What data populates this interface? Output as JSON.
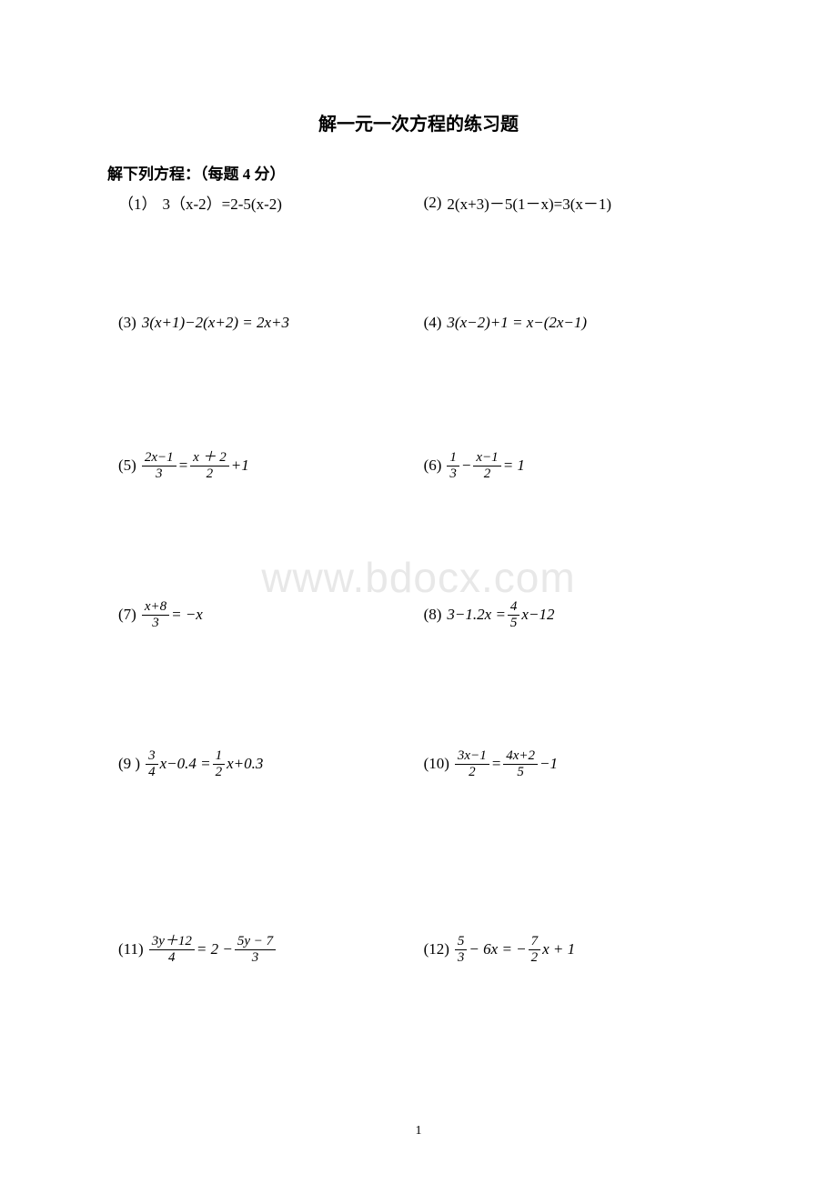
{
  "title": "解一元一次方程的练习题",
  "subtitle": "解下列方程：（每题 4 分）",
  "watermark": "www.bdocx.com",
  "page_number": "1",
  "colors": {
    "background": "#ffffff",
    "text": "#000000",
    "watermark": "#e8e8e8"
  },
  "typography": {
    "title_fontsize": 20,
    "subtitle_fontsize": 17,
    "body_fontsize": 17,
    "fraction_fontsize": 15,
    "watermark_fontsize": 46
  },
  "problems": {
    "p1": {
      "num": "（1）",
      "expr": "3（x-2）=2-5(x-2)"
    },
    "p2": {
      "num": "(2)",
      "expr": "2(x+3)－5(1－x)=3(x－1)"
    },
    "p3": {
      "num": "(3)",
      "expr": "3(x+1)−2(x+2) = 2x+3"
    },
    "p4": {
      "num": "(4)",
      "expr": "3(x−2)+1 = x−(2x−1)"
    },
    "p5": {
      "num": "(5)",
      "frac1_num": "2x−1",
      "frac1_den": "3",
      "op1": "=",
      "frac2_num": "x ＋ 2",
      "frac2_den": "2",
      "tail": "+1"
    },
    "p6": {
      "num": "(6)",
      "frac1_num": "1",
      "frac1_den": "3",
      "op1": "−",
      "frac2_num": "x−1",
      "frac2_den": "2",
      "tail": " = 1"
    },
    "p7": {
      "num": "(7)",
      "frac1_num": "x+8",
      "frac1_den": "3",
      "tail": " = −x"
    },
    "p8": {
      "num": "(8)",
      "pre": "3−1.2x = ",
      "frac1_num": "4",
      "frac1_den": "5",
      "tail": "x−12"
    },
    "p9": {
      "num": "(9 )",
      "frac1_num": "3",
      "frac1_den": "4",
      "mid": "x−0.4 = ",
      "frac2_num": "1",
      "frac2_den": "2",
      "tail": "x+0.3"
    },
    "p10": {
      "num": "(10)",
      "frac1_num": "3x−1",
      "frac1_den": "2",
      "op1": " = ",
      "frac2_num": "4x+2",
      "frac2_den": "5",
      "tail": "−1"
    },
    "p11": {
      "num": "(11)",
      "frac1_num": "3y＋12",
      "frac1_den": "4",
      "op1": " = 2 − ",
      "frac2_num": "5y − 7",
      "frac2_den": "3"
    },
    "p12": {
      "num": "(12)",
      "frac1_num": "5",
      "frac1_den": "3",
      "op1": "− 6x = −",
      "frac2_num": "7",
      "frac2_den": "2",
      "tail": "x + 1"
    }
  }
}
